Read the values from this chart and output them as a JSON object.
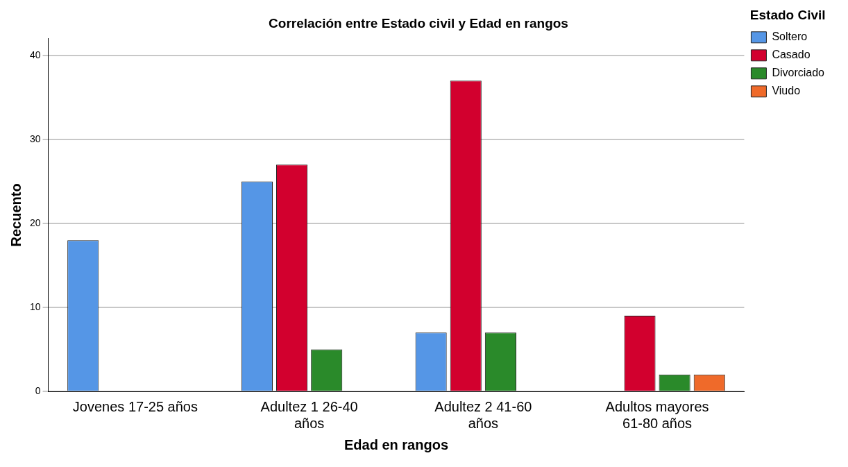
{
  "chart_data": {
    "type": "bar",
    "title": "Correlación entre Estado civil y Edad en rangos",
    "xlabel": "Edad en rangos",
    "ylabel": "Recuento",
    "legend_title": "Estado Civil",
    "categories": [
      "Jovenes 17-25 años",
      "Adultez 1 26-40 años",
      "Adultez 2 41-60 años",
      "Adultos mayores 61-80 años"
    ],
    "series": [
      {
        "name": "Soltero",
        "color": "#5596e6",
        "values": [
          18,
          25,
          7,
          0
        ]
      },
      {
        "name": "Casado",
        "color": "#d2002e",
        "values": [
          0,
          27,
          37,
          9
        ]
      },
      {
        "name": "Divorciado",
        "color": "#2a8a2a",
        "values": [
          0,
          5,
          7,
          2
        ]
      },
      {
        "name": "Viudo",
        "color": "#ef6a2a",
        "values": [
          0,
          0,
          0,
          2
        ]
      }
    ],
    "ylim": [
      0,
      42
    ],
    "yticks": [
      0,
      10,
      20,
      30,
      40
    ],
    "grid": "y",
    "legend": "top right"
  }
}
